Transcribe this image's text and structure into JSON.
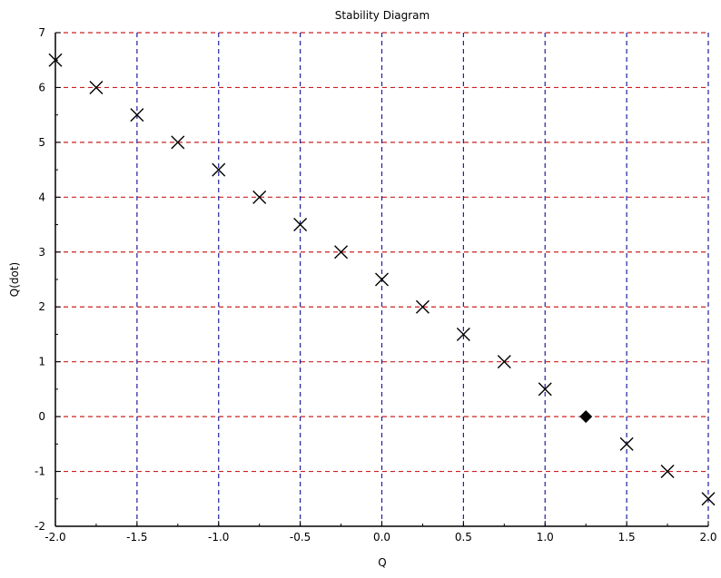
{
  "chart_data": {
    "type": "scatter",
    "title": "Stability Diagram",
    "xlabel": "Q",
    "ylabel": "Q(dot)",
    "xlim": [
      -2.0,
      2.0
    ],
    "ylim": [
      -2,
      7
    ],
    "x_ticks": [
      -2.0,
      -1.5,
      -1.0,
      -0.5,
      0.0,
      0.5,
      1.0,
      1.5,
      2.0
    ],
    "x_tick_labels": [
      "-2.0",
      "-1.5",
      "-1.0",
      "-0.5",
      "0.0",
      "0.5",
      "1.0",
      "1.5",
      "2.0"
    ],
    "y_ticks": [
      -2,
      -1,
      0,
      1,
      2,
      3,
      4,
      5,
      6,
      7
    ],
    "y_tick_labels": [
      "-2",
      "-1",
      "0",
      "1",
      "2",
      "3",
      "4",
      "5",
      "6",
      "7"
    ],
    "grid": true,
    "colors": {
      "grid_x": "#1f1f9a",
      "grid_y": "#cc2020",
      "marker": "#000000",
      "axis": "#000000"
    },
    "series": [
      {
        "marker": "x",
        "x": [
          -2.0,
          -1.75,
          -1.5,
          -1.25,
          -1.0,
          -0.75,
          -0.5,
          -0.25,
          0.0,
          0.25,
          0.5,
          0.75,
          1.0,
          1.5,
          1.75,
          2.0
        ],
        "y": [
          6.5,
          6.0,
          5.5,
          5.0,
          4.5,
          4.0,
          3.5,
          3.0,
          2.5,
          2.0,
          1.5,
          1.0,
          0.5,
          -0.5,
          -1.0,
          -1.5
        ]
      },
      {
        "marker": "filled-diamond",
        "x": [
          1.25
        ],
        "y": [
          0.0
        ]
      }
    ]
  }
}
